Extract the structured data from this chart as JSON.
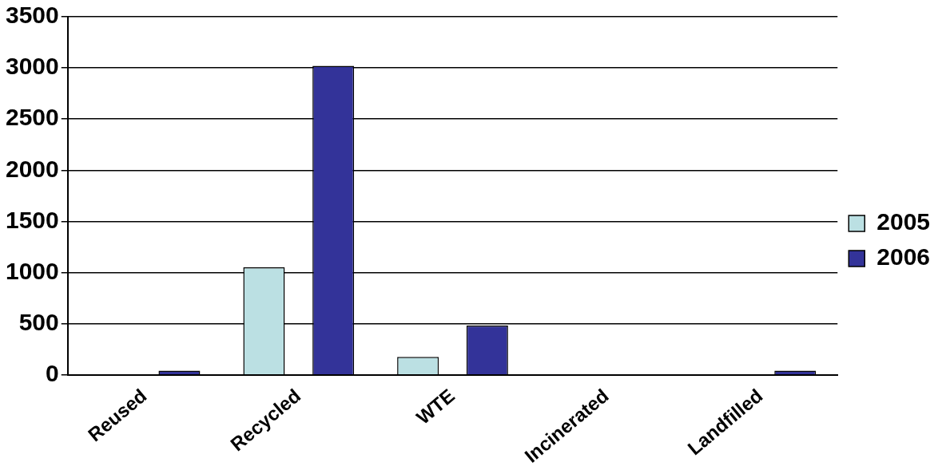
{
  "chart_data": {
    "type": "bar",
    "categories": [
      "Reused",
      "Recycled",
      "WTE",
      "Incinerated",
      "Landfilled"
    ],
    "series": [
      {
        "name": "2005",
        "color": "#bbe0e3",
        "values": [
          0,
          1050,
          175,
          0,
          0
        ]
      },
      {
        "name": "2006",
        "color": "#333399",
        "values": [
          40,
          3020,
          480,
          0,
          40
        ]
      }
    ],
    "ylim": [
      0,
      3500
    ],
    "yticks": [
      0,
      500,
      1000,
      1500,
      2000,
      2500,
      3000,
      3500
    ],
    "grid": "y",
    "legend": "right"
  }
}
